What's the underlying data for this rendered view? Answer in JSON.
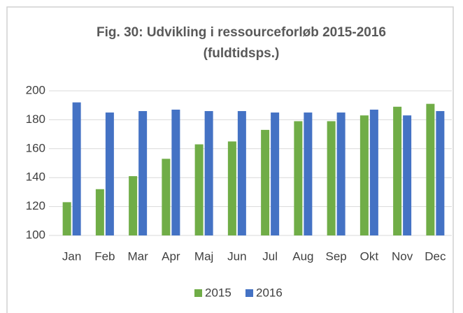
{
  "chart_data": {
    "type": "bar",
    "title": "Fig. 30: Udvikling i ressourceforløb 2015-2016 (fuldtidsps.)",
    "categories": [
      "Jan",
      "Feb",
      "Mar",
      "Apr",
      "Maj",
      "Jun",
      "Jul",
      "Aug",
      "Sep",
      "Okt",
      "Nov",
      "Dec"
    ],
    "series": [
      {
        "name": "2015",
        "color": "#70ad47",
        "values": [
          123,
          132,
          141,
          153,
          163,
          165,
          173,
          179,
          179,
          183,
          189,
          191
        ]
      },
      {
        "name": "2016",
        "color": "#4472c4",
        "values": [
          192,
          185,
          186,
          187,
          186,
          186,
          185,
          185,
          185,
          187,
          183,
          186
        ]
      }
    ],
    "ylim": [
      100,
      200
    ],
    "yticks": [
      100,
      120,
      140,
      160,
      180,
      200
    ],
    "grid": true,
    "legend": "bottom"
  }
}
